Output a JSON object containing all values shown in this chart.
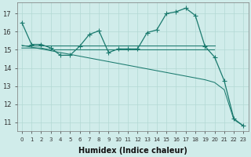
{
  "xlabel": "Humidex (Indice chaleur)",
  "background_color": "#d0ecea",
  "grid_color": "#b2d8d4",
  "line_color": "#1a7a6e",
  "x": [
    0,
    1,
    2,
    3,
    4,
    5,
    6,
    7,
    8,
    9,
    10,
    11,
    12,
    13,
    14,
    15,
    16,
    17,
    18,
    19,
    20,
    21,
    22,
    23
  ],
  "line_main": [
    16.5,
    15.3,
    15.3,
    15.1,
    14.7,
    14.7,
    15.2,
    15.85,
    16.05,
    14.85,
    15.05,
    15.05,
    15.05,
    15.95,
    16.1,
    17.0,
    17.1,
    17.3,
    16.9,
    15.2,
    14.6,
    13.3,
    11.2,
    10.8
  ],
  "line_flat_high": [
    15.25,
    15.25,
    15.25,
    15.25,
    15.25,
    15.25,
    15.25,
    15.25,
    15.25,
    15.25,
    15.25,
    15.25,
    15.25,
    15.25,
    15.25,
    15.25,
    15.25,
    15.25,
    15.25,
    15.25,
    15.25,
    null,
    null,
    null
  ],
  "line_flat_low": [
    15.1,
    15.1,
    15.1,
    15.0,
    15.0,
    15.0,
    15.0,
    15.0,
    15.0,
    15.0,
    15.0,
    15.0,
    15.0,
    15.0,
    15.0,
    15.0,
    15.0,
    15.0,
    15.0,
    15.0,
    15.0,
    null,
    null,
    null
  ],
  "line_diag": [
    15.25,
    15.15,
    15.05,
    14.95,
    14.85,
    14.75,
    14.65,
    14.55,
    14.45,
    14.35,
    14.25,
    14.15,
    14.05,
    13.95,
    13.85,
    13.75,
    13.65,
    13.55,
    13.45,
    13.35,
    13.2,
    12.8,
    11.15,
    10.8
  ],
  "ylim": [
    10.5,
    17.6
  ],
  "yticks": [
    11,
    12,
    13,
    14,
    15,
    16,
    17
  ],
  "xticks": [
    0,
    1,
    2,
    3,
    4,
    5,
    6,
    7,
    8,
    9,
    10,
    11,
    12,
    13,
    14,
    15,
    16,
    17,
    18,
    19,
    20,
    21,
    22,
    23
  ]
}
